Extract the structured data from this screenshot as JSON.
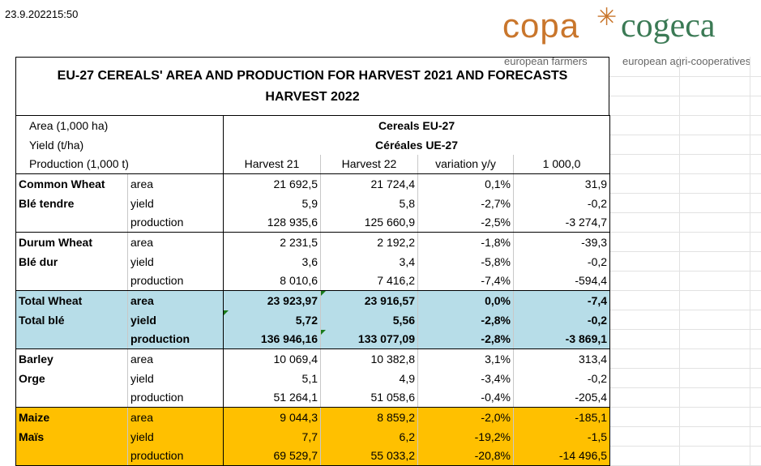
{
  "timestamp": "23.9.202215:50",
  "logo": {
    "left": "copa",
    "right": "cogeca",
    "left_sub": "european farmers",
    "right_sub": "european agri-cooperatives"
  },
  "title": "EU-27 CEREALS' AREA AND PRODUCTION FOR HARVEST 2021 AND FORECASTS HARVEST 2022",
  "header": {
    "label1": "Area (1,000 ha)",
    "label2": "Yield (t/ha)",
    "label3": "Production (1,000 t)",
    "group_en": "Cereals EU-27",
    "group_fr": "Céréales UE-27",
    "columns": [
      "Harvest 21",
      "Harvest 22",
      "variation y/y",
      "1 000,0"
    ]
  },
  "rows": [
    {
      "name": "Common Wheat",
      "alt": "Blé tendre",
      "metrics": [
        {
          "m": "area",
          "h21": "21 692,5",
          "h22": "21 724,4",
          "var": "0,1%",
          "diff": "31,9"
        },
        {
          "m": "yield",
          "h21": "5,9",
          "h22": "5,8",
          "var": "-2,7%",
          "diff": "-0,2"
        },
        {
          "m": "production",
          "h21": "128 935,6",
          "h22": "125 660,9",
          "var": "-2,5%",
          "diff": "-3 274,7"
        }
      ]
    },
    {
      "name": "Durum Wheat",
      "alt": "Blé dur",
      "metrics": [
        {
          "m": "area",
          "h21": "2 231,5",
          "h22": "2 192,2",
          "var": "-1,8%",
          "diff": "-39,3"
        },
        {
          "m": "yield",
          "h21": "3,6",
          "h22": "3,4",
          "var": "-5,8%",
          "diff": "-0,2"
        },
        {
          "m": "production",
          "h21": "8 010,6",
          "h22": "7 416,2",
          "var": "-7,4%",
          "diff": "-594,4"
        }
      ]
    },
    {
      "name": "Total Wheat",
      "alt": "Total blé",
      "metrics": [
        {
          "m": "area",
          "h21": "23 923,97",
          "h22": "23 916,57",
          "var": "0,0%",
          "diff": "-7,4"
        },
        {
          "m": "yield",
          "h21": "5,72",
          "h22": "5,56",
          "var": "-2,8%",
          "diff": "-0,2"
        },
        {
          "m": "production",
          "h21": "136 946,16",
          "h22": "133 077,09",
          "var": "-2,8%",
          "diff": "-3 869,1"
        }
      ]
    },
    {
      "name": "Barley",
      "alt": "Orge",
      "metrics": [
        {
          "m": "area",
          "h21": "10 069,4",
          "h22": "10 382,8",
          "var": "3,1%",
          "diff": "313,4"
        },
        {
          "m": "yield",
          "h21": "5,1",
          "h22": "4,9",
          "var": "-3,4%",
          "diff": "-0,2"
        },
        {
          "m": "production",
          "h21": "51 264,1",
          "h22": "51 058,6",
          "var": "-0,4%",
          "diff": "-205,4"
        }
      ]
    },
    {
      "name": "Maize",
      "alt": "Maïs",
      "metrics": [
        {
          "m": "area",
          "h21": "9 044,3",
          "h22": "8 859,2",
          "var": "-2,0%",
          "diff": "-185,1"
        },
        {
          "m": "yield",
          "h21": "7,7",
          "h22": "6,2",
          "var": "-19,2%",
          "diff": "-1,5"
        },
        {
          "m": "production",
          "h21": "69 529,7",
          "h22": "55 033,2",
          "var": "-20,8%",
          "diff": "-14 496,5"
        }
      ]
    }
  ],
  "colors": {
    "total_wheat_bg": "#b7dde8",
    "maize_bg": "#ffc000",
    "copa": "#c9762c",
    "cogeca": "#3b7a55"
  }
}
